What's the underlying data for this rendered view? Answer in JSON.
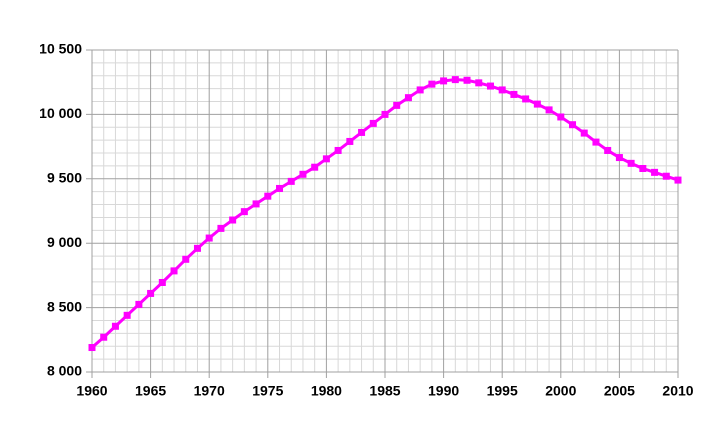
{
  "chart_data": {
    "type": "line",
    "x": [
      1960,
      1961,
      1962,
      1963,
      1964,
      1965,
      1966,
      1967,
      1968,
      1969,
      1970,
      1971,
      1972,
      1973,
      1974,
      1975,
      1976,
      1977,
      1978,
      1979,
      1980,
      1981,
      1982,
      1983,
      1984,
      1985,
      1986,
      1987,
      1988,
      1989,
      1990,
      1991,
      1992,
      1993,
      1994,
      1995,
      1996,
      1997,
      1998,
      1999,
      2000,
      2001,
      2002,
      2003,
      2004,
      2005,
      2006,
      2007,
      2008,
      2009,
      2010
    ],
    "series": [
      {
        "color": "#ff00ff",
        "values": [
          8190,
          8270,
          8355,
          8440,
          8525,
          8610,
          8695,
          8785,
          8875,
          8960,
          9040,
          9115,
          9180,
          9245,
          9305,
          9365,
          9425,
          9480,
          9535,
          9590,
          9655,
          9720,
          9790,
          9860,
          9930,
          10000,
          10070,
          10130,
          10190,
          10235,
          10260,
          10270,
          10265,
          10245,
          10220,
          10190,
          10155,
          10120,
          10080,
          10035,
          9980,
          9920,
          9855,
          9785,
          9720,
          9665,
          9620,
          9580,
          9550,
          9520,
          9490
        ]
      }
    ],
    "xlim": [
      1960,
      2010
    ],
    "xticks": [
      1960,
      1965,
      1970,
      1975,
      1980,
      1985,
      1990,
      1995,
      2000,
      2005,
      2010
    ],
    "ylim": [
      8000,
      10500
    ],
    "yticks": [
      {
        "value": 8000,
        "label": "8 000"
      },
      {
        "value": 8500,
        "label": "8 500"
      },
      {
        "value": 9000,
        "label": "9 000"
      },
      {
        "value": 9500,
        "label": "9 500"
      },
      {
        "value": 10000,
        "label": "10 000"
      },
      {
        "value": 10500,
        "label": "10 500"
      }
    ],
    "grid": true
  }
}
